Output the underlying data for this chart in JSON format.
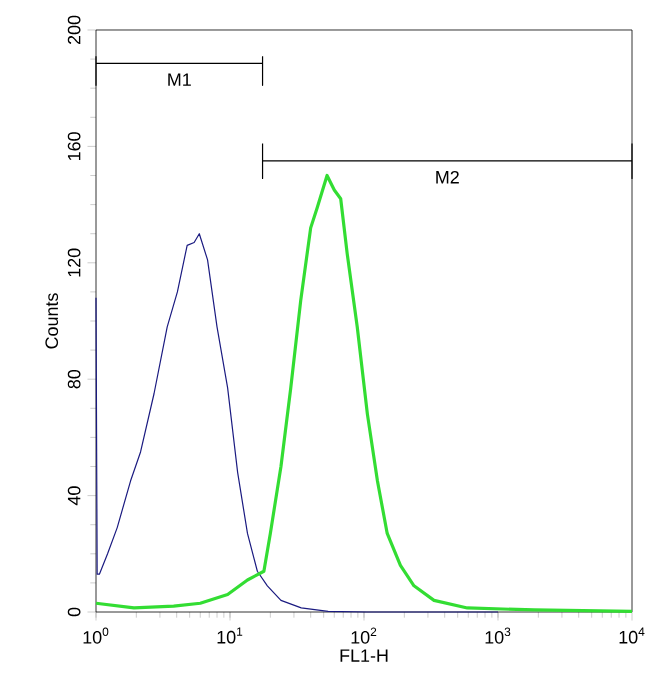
{
  "chart_data": {
    "type": "line",
    "xlabel": "FL1-H",
    "ylabel": "Counts",
    "log": "x",
    "xlim": [
      1,
      10000
    ],
    "ylim": [
      0,
      200
    ],
    "xticks": [
      {
        "value": 1,
        "label": "10$^{0}$"
      },
      {
        "value": 10,
        "label": "10$^{1}$"
      },
      {
        "value": 100,
        "label": "10$^{2}$"
      },
      {
        "value": 1000,
        "label": "10$^{3}$"
      },
      {
        "value": 10000,
        "label": "10$^{4}$"
      }
    ],
    "yticks": [
      0,
      40,
      80,
      120,
      160,
      200
    ],
    "series": [
      {
        "name": "M1",
        "color": "#000000",
        "x": [
          1,
          1,
          1,
          17.5,
          17.5,
          17.5
        ],
        "values": [
          191,
          181,
          188.5,
          188.5,
          181,
          191
        ]
      },
      {
        "name": "M2",
        "color": "#000000",
        "x": [
          17.5,
          17.5,
          17.5,
          10000,
          10000,
          10000
        ],
        "values": [
          161,
          149,
          155,
          155,
          149,
          161
        ]
      },
      {
        "color": "#1a1a80",
        "x": [
          1,
          1.02,
          1.06,
          1.22,
          1.44,
          1.81,
          2.15,
          2.71,
          3.4,
          4.05,
          4.79,
          5.4,
          5.9,
          6.8,
          8.0,
          9.6,
          11.4,
          13.5,
          16,
          19,
          24,
          34,
          54,
          105,
          1000
        ],
        "values": [
          108,
          13,
          13,
          20,
          29,
          45,
          55,
          75,
          98,
          110,
          126,
          127,
          130,
          121,
          98,
          77,
          48,
          27,
          14,
          9,
          4,
          1.4,
          0.2,
          0,
          0
        ]
      },
      {
        "color": "#33dd33",
        "x": [
          1,
          1.92,
          3.8,
          6.0,
          9.6,
          13.5,
          17.9,
          20,
          24,
          28.4,
          33.7,
          40,
          44.8,
          53,
          60,
          67,
          75,
          89,
          106,
          126,
          149,
          187,
          236,
          333,
          590,
          1860,
          10000
        ],
        "values": [
          3,
          1.4,
          2,
          3,
          6,
          11,
          14,
          27,
          50,
          77,
          107,
          132,
          139,
          150,
          145,
          142,
          123,
          98,
          68,
          45,
          27,
          16,
          9,
          4,
          1.4,
          0.7,
          0.2
        ]
      }
    ]
  }
}
